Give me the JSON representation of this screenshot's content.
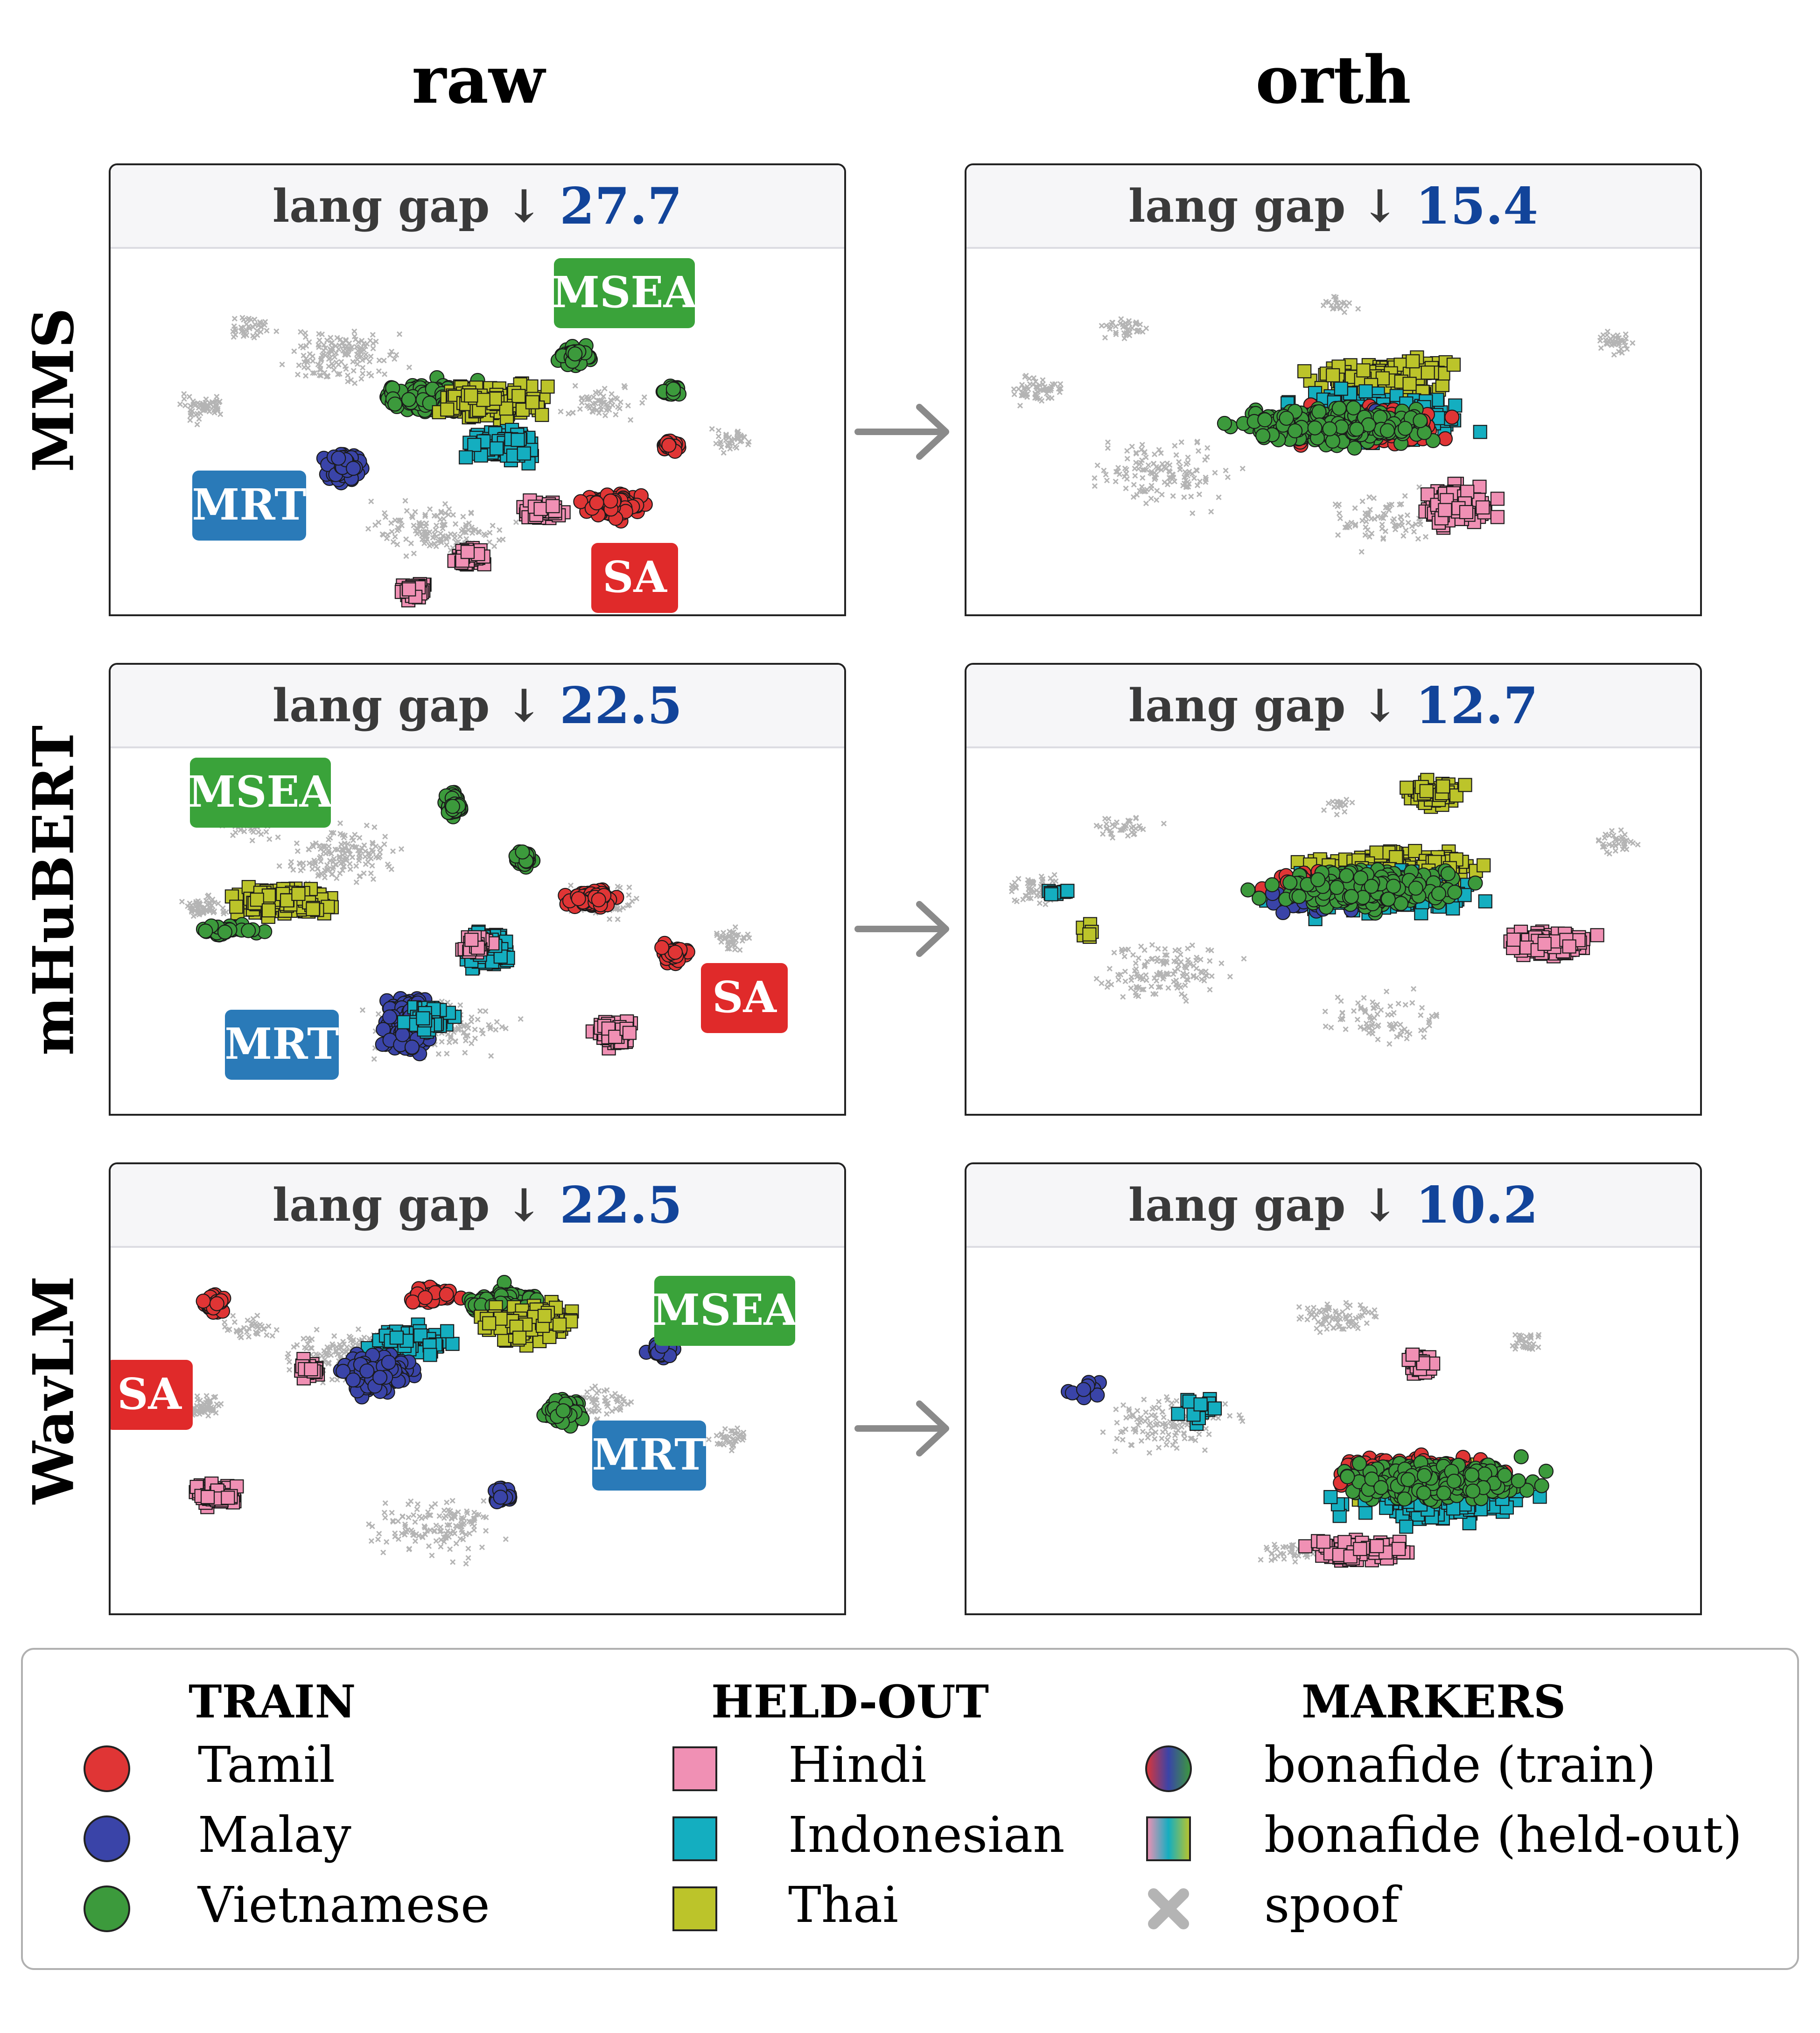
{
  "columns": [
    "raw",
    "orth"
  ],
  "rows": [
    "MMS",
    "mHuBERT",
    "WavLM"
  ],
  "gap_label": "lang gap ↓",
  "colors": {
    "Tamil": "#e03535",
    "Malay": "#3a44a8",
    "Vietnamese": "#3c9a3c",
    "Hindi": "#f090b4",
    "Indonesian": "#14aec0",
    "Thai": "#bcc42a",
    "spoof": "#b4b4b4",
    "MSEA": "#3aa33a",
    "MRT": "#2a7ab8",
    "SA": "#e02a2a",
    "gap_value": "#12449a"
  },
  "chart_data": [
    {
      "type": "scatter",
      "model": "MMS",
      "view": "raw",
      "lang_gap": "27.7",
      "cluster_labels": [
        "MSEA",
        "MRT",
        "SA"
      ]
    },
    {
      "type": "scatter",
      "model": "MMS",
      "view": "orth",
      "lang_gap": "15.4",
      "cluster_labels": []
    },
    {
      "type": "scatter",
      "model": "mHuBERT",
      "view": "raw",
      "lang_gap": "22.5",
      "cluster_labels": [
        "MSEA",
        "MRT",
        "SA"
      ]
    },
    {
      "type": "scatter",
      "model": "mHuBERT",
      "view": "orth",
      "lang_gap": "12.7",
      "cluster_labels": []
    },
    {
      "type": "scatter",
      "model": "WavLM",
      "view": "raw",
      "lang_gap": "22.5",
      "cluster_labels": [
        "MSEA",
        "SA",
        "MRT"
      ]
    },
    {
      "type": "scatter",
      "model": "WavLM",
      "view": "orth",
      "lang_gap": "10.2",
      "cluster_labels": []
    }
  ],
  "legend": {
    "train": {
      "title": "TRAIN",
      "items": [
        "Tamil",
        "Malay",
        "Vietnamese"
      ]
    },
    "heldout": {
      "title": "HELD-OUT",
      "items": [
        "Hindi",
        "Indonesian",
        "Thai"
      ]
    },
    "markers": {
      "title": "MARKERS",
      "items": [
        "bonafide (train)",
        "bonafide (held-out)",
        "spoof"
      ]
    }
  }
}
